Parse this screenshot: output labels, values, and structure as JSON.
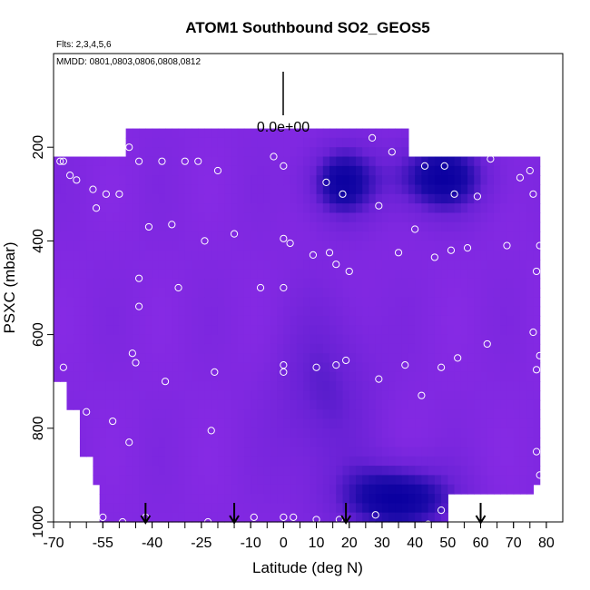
{
  "chart_data": {
    "type": "heatmap",
    "title": "ATOM1 Southbound SO2_GEOS5",
    "flights_note": "Flts: 2,3,4,5,6",
    "dates_note": "MMDD: 0801,0803,0806,0808,0812",
    "scale_label": "0.0e+00",
    "xlabel": "Latitude (deg N)",
    "ylabel": "PSXC (mbar)",
    "xlim": [
      -70,
      85
    ],
    "ylim": [
      1000,
      0
    ],
    "x_ticks": [
      -70,
      -55,
      -40,
      -25,
      -10,
      0,
      10,
      20,
      30,
      40,
      50,
      60,
      70,
      80
    ],
    "x_tick_labels": [
      "-70",
      "-55",
      "-40",
      "-25",
      "-10",
      "0",
      "10",
      "20",
      "30",
      "40",
      "50",
      "60",
      "70",
      "80"
    ],
    "y_ticks": [
      200,
      400,
      600,
      800,
      1000
    ],
    "y_tick_labels": [
      "200",
      "400",
      "600",
      "800",
      "1000"
    ],
    "grid": false,
    "colors": {
      "background_field": "#7a28e4",
      "low": "#8a2be6",
      "mid": "#6a22d6",
      "high": "#1a0aa8",
      "max": "#0b00a0",
      "marker": "#ffffff"
    },
    "field_extent": {
      "lat_range": [
        -69,
        78
      ],
      "p_range": [
        220,
        1000
      ]
    },
    "features": [
      {
        "name": "upper-tropospheric plume near equator",
        "lat": [
          10,
          25
        ],
        "p": [
          220,
          330
        ],
        "level": 0.8
      },
      {
        "name": "upper-tropospheric plume north",
        "lat": [
          35,
          60
        ],
        "p": [
          210,
          320
        ],
        "level": 0.85
      },
      {
        "name": "boundary layer plume",
        "lat": [
          20,
          50
        ],
        "p": [
          900,
          1000
        ],
        "level": 0.9
      },
      {
        "name": "mid column enhancement",
        "lat": [
          0,
          25
        ],
        "p": [
          550,
          900
        ],
        "level": 0.4
      }
    ],
    "sample_points": [
      {
        "lat": -68,
        "p": 230
      },
      {
        "lat": -67,
        "p": 230
      },
      {
        "lat": -65,
        "p": 260
      },
      {
        "lat": -63,
        "p": 270
      },
      {
        "lat": -58,
        "p": 290
      },
      {
        "lat": -57,
        "p": 330
      },
      {
        "lat": -54,
        "p": 300
      },
      {
        "lat": -50,
        "p": 300
      },
      {
        "lat": -47,
        "p": 200
      },
      {
        "lat": -44,
        "p": 230
      },
      {
        "lat": -41,
        "p": 370
      },
      {
        "lat": -37,
        "p": 230
      },
      {
        "lat": -34,
        "p": 365
      },
      {
        "lat": -32,
        "p": 500
      },
      {
        "lat": -30,
        "p": 230
      },
      {
        "lat": -26,
        "p": 230
      },
      {
        "lat": -24,
        "p": 400
      },
      {
        "lat": -20,
        "p": 250
      },
      {
        "lat": -15,
        "p": 385
      },
      {
        "lat": -7,
        "p": 500
      },
      {
        "lat": -3,
        "p": 220
      },
      {
        "lat": 0,
        "p": 240
      },
      {
        "lat": 0,
        "p": 395
      },
      {
        "lat": 2,
        "p": 405
      },
      {
        "lat": 0,
        "p": 500
      },
      {
        "lat": 9,
        "p": 430
      },
      {
        "lat": 13,
        "p": 275
      },
      {
        "lat": 14,
        "p": 425
      },
      {
        "lat": 16,
        "p": 450
      },
      {
        "lat": 18,
        "p": 300
      },
      {
        "lat": 20,
        "p": 465
      },
      {
        "lat": 27,
        "p": 180
      },
      {
        "lat": 29,
        "p": 325
      },
      {
        "lat": 33,
        "p": 210
      },
      {
        "lat": 35,
        "p": 425
      },
      {
        "lat": 40,
        "p": 375
      },
      {
        "lat": 43,
        "p": 240
      },
      {
        "lat": 46,
        "p": 435
      },
      {
        "lat": 49,
        "p": 240
      },
      {
        "lat": 51,
        "p": 420
      },
      {
        "lat": 52,
        "p": 300
      },
      {
        "lat": 56,
        "p": 415
      },
      {
        "lat": 59,
        "p": 305
      },
      {
        "lat": 63,
        "p": 225
      },
      {
        "lat": 68,
        "p": 410
      },
      {
        "lat": 72,
        "p": 265
      },
      {
        "lat": 75,
        "p": 250
      },
      {
        "lat": 76,
        "p": 300
      },
      {
        "lat": 77,
        "p": 465
      },
      {
        "lat": 78,
        "p": 410
      },
      {
        "lat": -67,
        "p": 670
      },
      {
        "lat": -46,
        "p": 640
      },
      {
        "lat": -45,
        "p": 660
      },
      {
        "lat": -44,
        "p": 480
      },
      {
        "lat": -44,
        "p": 540
      },
      {
        "lat": -36,
        "p": 700
      },
      {
        "lat": -21,
        "p": 680
      },
      {
        "lat": 0,
        "p": 665
      },
      {
        "lat": 0,
        "p": 680
      },
      {
        "lat": 10,
        "p": 670
      },
      {
        "lat": 16,
        "p": 665
      },
      {
        "lat": 19,
        "p": 655
      },
      {
        "lat": 29,
        "p": 695
      },
      {
        "lat": 37,
        "p": 665
      },
      {
        "lat": 42,
        "p": 730
      },
      {
        "lat": 48,
        "p": 670
      },
      {
        "lat": 53,
        "p": 650
      },
      {
        "lat": 62,
        "p": 620
      },
      {
        "lat": 76,
        "p": 595
      },
      {
        "lat": 78,
        "p": 645
      },
      {
        "lat": 77,
        "p": 675
      },
      {
        "lat": -60,
        "p": 765
      },
      {
        "lat": -52,
        "p": 785
      },
      {
        "lat": -47,
        "p": 830
      },
      {
        "lat": -22,
        "p": 805
      },
      {
        "lat": 77,
        "p": 850
      },
      {
        "lat": 78,
        "p": 900
      },
      {
        "lat": -55,
        "p": 990
      },
      {
        "lat": -49,
        "p": 1000
      },
      {
        "lat": -42,
        "p": 990
      },
      {
        "lat": -23,
        "p": 1000
      },
      {
        "lat": -9,
        "p": 990
      },
      {
        "lat": 0,
        "p": 990
      },
      {
        "lat": 3,
        "p": 990
      },
      {
        "lat": 10,
        "p": 995
      },
      {
        "lat": 17,
        "p": 995
      },
      {
        "lat": 28,
        "p": 985
      },
      {
        "lat": 37,
        "p": 1010
      },
      {
        "lat": 44,
        "p": 1005
      },
      {
        "lat": 48,
        "p": 975
      }
    ],
    "arrows_at_lat": [
      -42,
      -15,
      19,
      60
    ]
  }
}
